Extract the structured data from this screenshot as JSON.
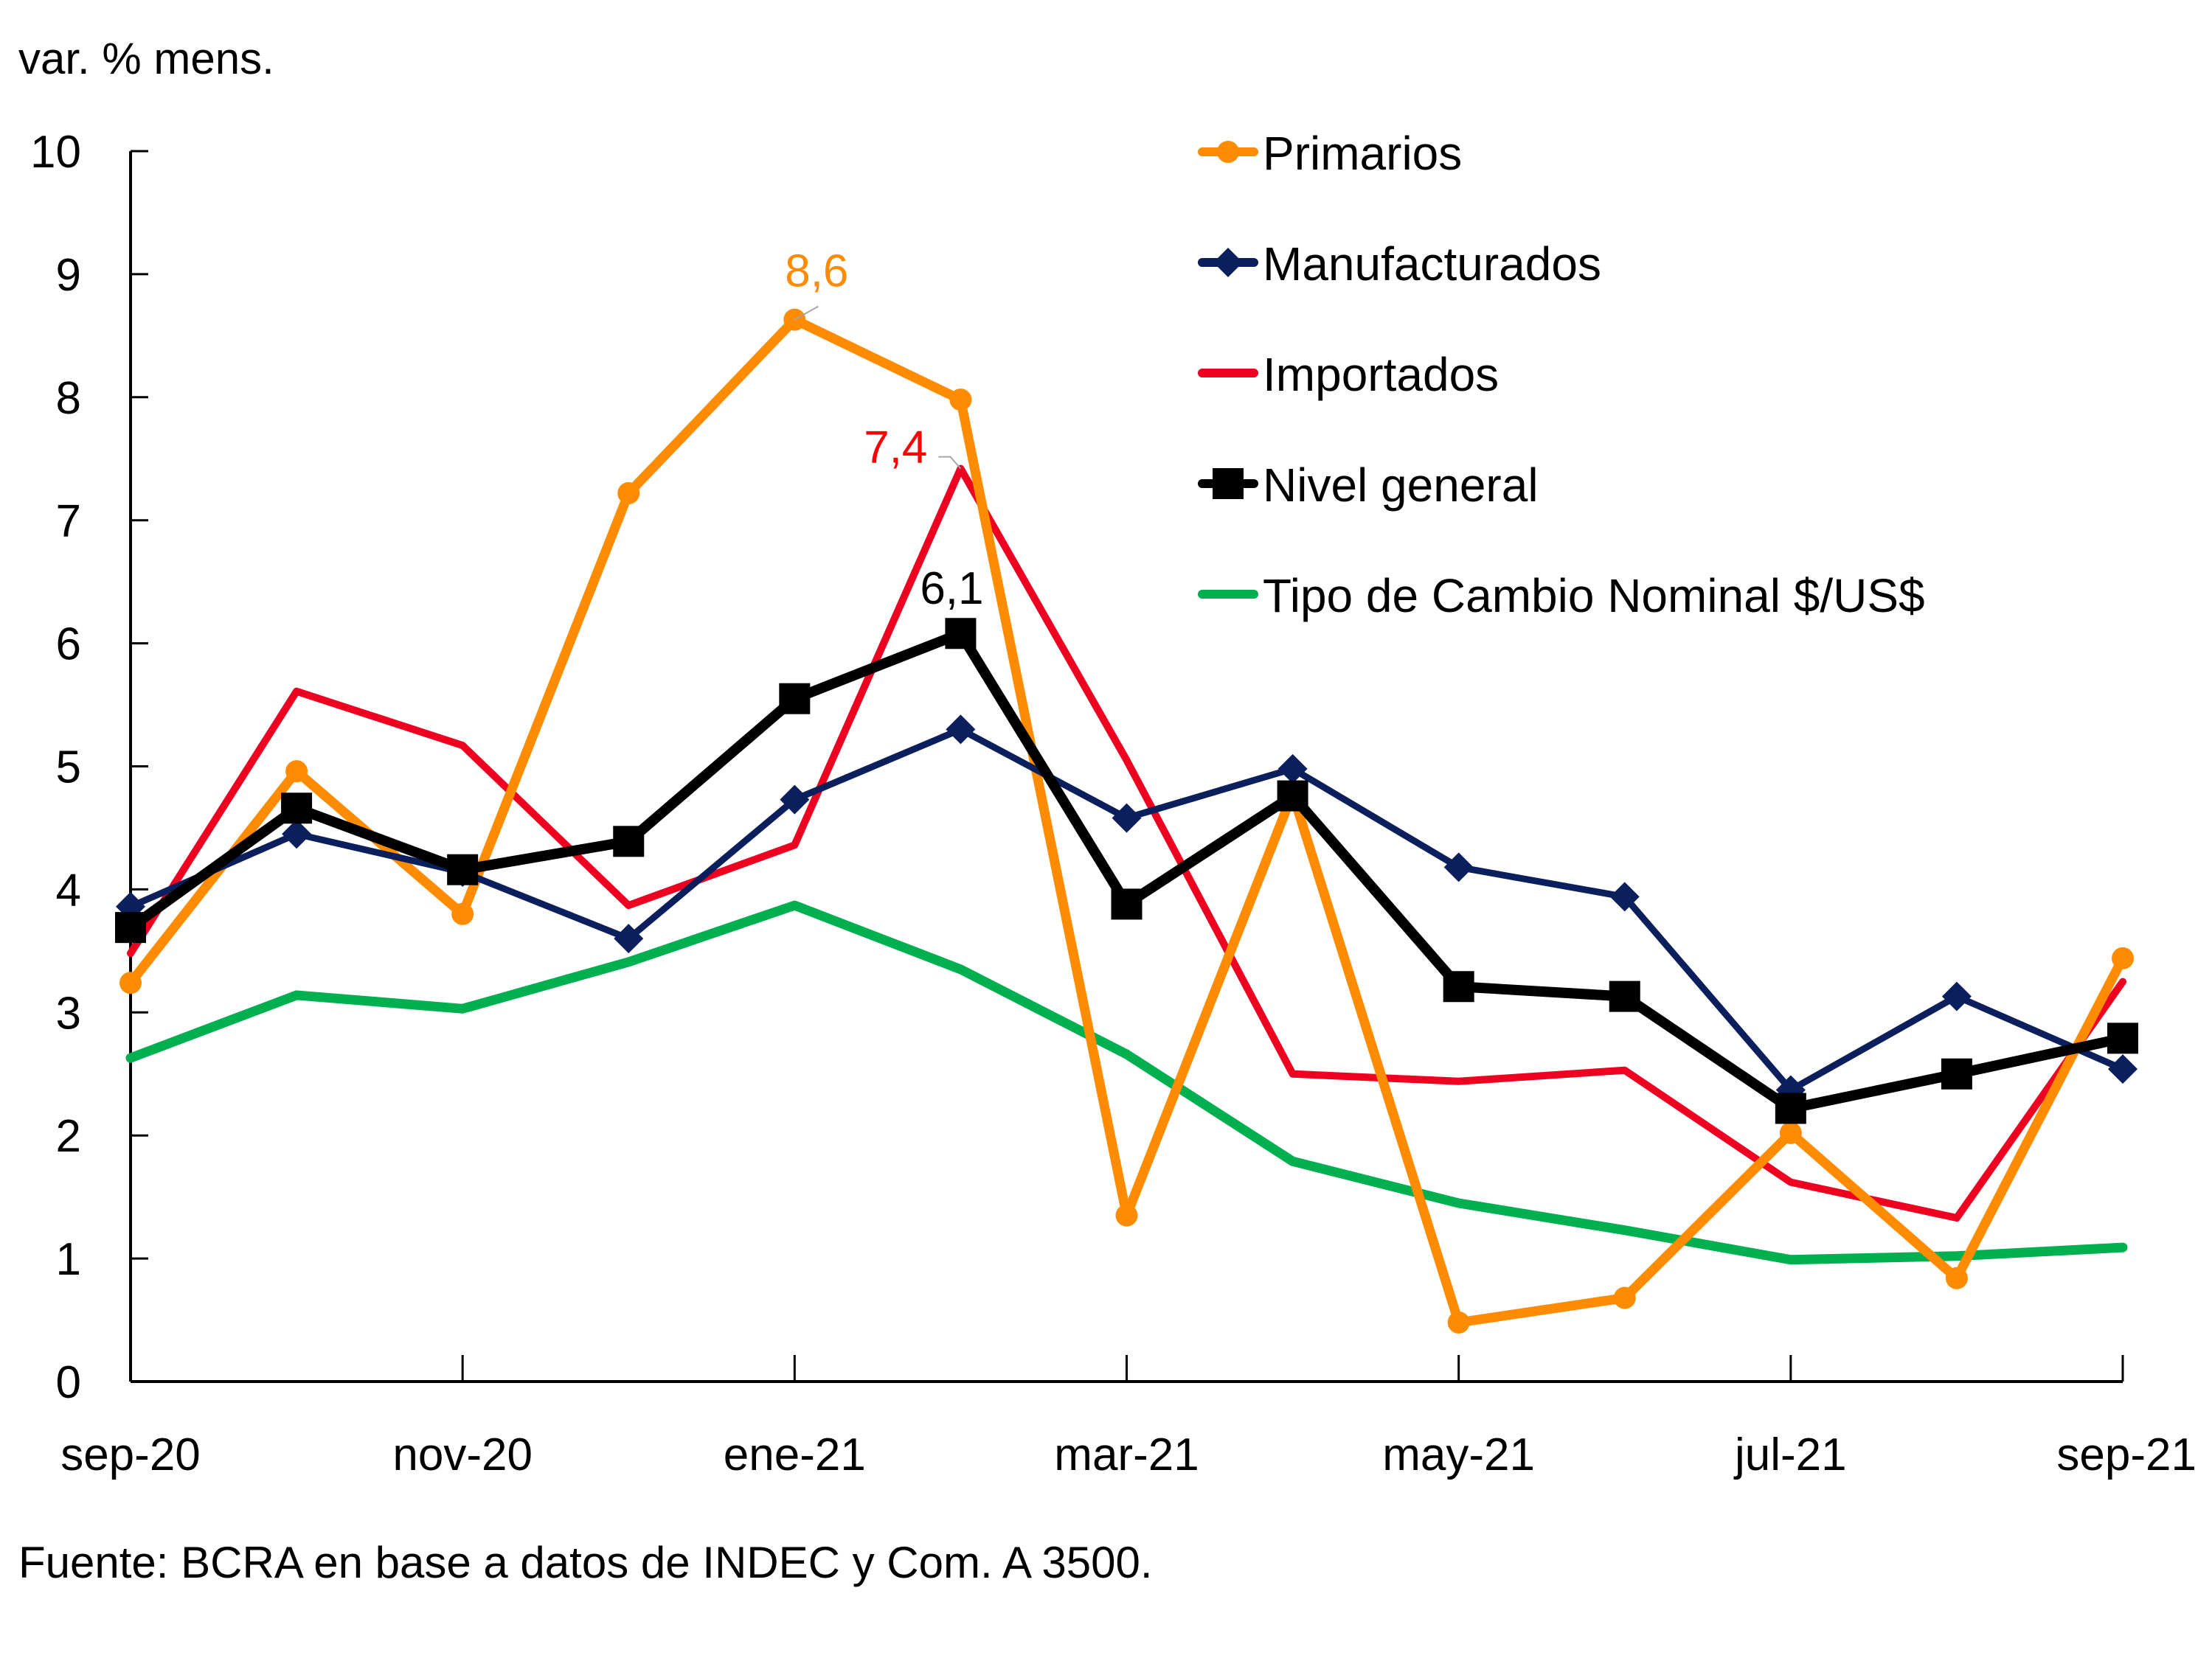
{
  "chart_data": {
    "type": "line",
    "title": "",
    "ylabel": "var. % mens.",
    "xlabel": "",
    "ylim": [
      0,
      10
    ],
    "yticks": [
      "0",
      "1",
      "2",
      "3",
      "4",
      "5",
      "6",
      "7",
      "8",
      "9",
      "10"
    ],
    "x": [
      "sep-20",
      "oct-20",
      "nov-20",
      "dic-20",
      "ene-21",
      "feb-21",
      "mar-21",
      "abr-21",
      "may-21",
      "jun-21",
      "jul-21",
      "ago-21",
      "sep-21"
    ],
    "xtick_labels": [
      "sep-20",
      "nov-20",
      "ene-21",
      "mar-21",
      "may-21",
      "jul-21",
      "sep-21"
    ],
    "grid": false,
    "legend_position": "top-right",
    "series": [
      {
        "name": "Primarios",
        "color": "#FF8C00",
        "marker": "circle",
        "values": [
          3.24,
          4.96,
          3.8,
          7.22,
          8.63,
          7.98,
          1.35,
          4.78,
          0.48,
          0.68,
          2.02,
          0.84,
          3.44
        ]
      },
      {
        "name": "Manufacturados",
        "color": "#0A1F5C",
        "marker": "diamond",
        "values": [
          3.86,
          4.45,
          4.14,
          3.6,
          4.73,
          5.3,
          4.58,
          4.98,
          4.18,
          3.94,
          2.37,
          3.13,
          2.54
        ]
      },
      {
        "name": "Importados",
        "color": "#EE0020",
        "marker": "none",
        "values": [
          3.48,
          5.61,
          5.17,
          3.87,
          4.36,
          7.42,
          5.05,
          2.5,
          2.44,
          2.53,
          1.62,
          1.33,
          3.25
        ]
      },
      {
        "name": "Nivel general",
        "color": "#000000",
        "marker": "square",
        "values": [
          3.69,
          4.66,
          4.16,
          4.39,
          5.55,
          6.08,
          3.88,
          4.76,
          3.21,
          3.13,
          2.22,
          2.5,
          2.79
        ]
      },
      {
        "name": "Tipo de Cambio Nominal $/US$",
        "color": "#00B050",
        "marker": "none",
        "values": [
          2.63,
          3.14,
          3.03,
          3.41,
          3.87,
          3.35,
          2.66,
          1.79,
          1.45,
          1.23,
          0.99,
          1.02,
          1.09
        ]
      }
    ],
    "annotations": [
      {
        "series": "Primarios",
        "x": "ene-21",
        "text": "8,6",
        "color": "#FF8C00"
      },
      {
        "series": "Importados",
        "x": "feb-21",
        "text": "7,4",
        "color": "#FF0000"
      },
      {
        "series": "Nivel general",
        "x": "feb-21",
        "text": "6,1",
        "color": "#000000"
      }
    ]
  },
  "footer": {
    "source": "Fuente: BCRA en base a datos de INDEC y Com. A 3500."
  }
}
